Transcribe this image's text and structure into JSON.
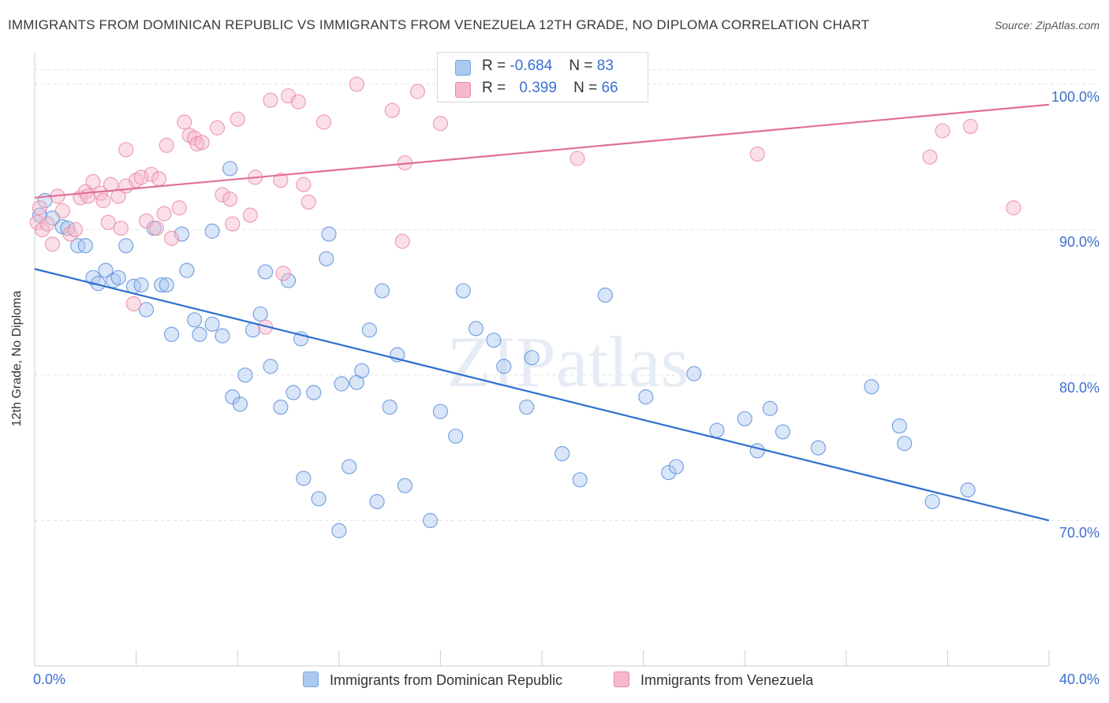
{
  "title": "IMMIGRANTS FROM DOMINICAN REPUBLIC VS IMMIGRANTS FROM VENEZUELA 12TH GRADE, NO DIPLOMA CORRELATION CHART",
  "source": "Source: ZipAtlas.com",
  "watermark": "ZIPatlas",
  "legend": {
    "rows": [
      {
        "r_label": "R =",
        "r_value": "-0.684",
        "n_label": "N =",
        "n_value": "83",
        "color": "#aac8f0"
      },
      {
        "r_label": "R =",
        "r_value": "0.399",
        "n_label": "N =",
        "n_value": "66",
        "color": "#f6b8cb"
      }
    ]
  },
  "chart_data": {
    "type": "scatter",
    "title": "IMMIGRANTS FROM DOMINICAN REPUBLIC VS IMMIGRANTS FROM VENEZUELA 12TH GRADE, NO DIPLOMA CORRELATION CHART",
    "xlabel": "",
    "ylabel": "12th Grade, No Diploma",
    "xlim": [
      0,
      40
    ],
    "ylim": [
      60,
      102
    ],
    "x_tick_labels": [
      "0.0%",
      "40.0%"
    ],
    "y_ticks": [
      70,
      80,
      90,
      100
    ],
    "y_tick_labels": [
      "70.0%",
      "80.0%",
      "90.0%",
      "100.0%"
    ],
    "grid": true,
    "legend_position": "bottom",
    "series": [
      {
        "name": "Immigrants from Dominican Republic",
        "color": "#5b8fd8",
        "fill": "#aac8f0",
        "trend": {
          "x": [
            0,
            40
          ],
          "y": [
            87.3,
            70.0
          ],
          "color": "#2e6fd0"
        },
        "points": [
          [
            0.2,
            91
          ],
          [
            0.4,
            92
          ],
          [
            0.7,
            90.8
          ],
          [
            1.1,
            90.2
          ],
          [
            1.3,
            90.1
          ],
          [
            1.7,
            88.9
          ],
          [
            2.0,
            88.9
          ],
          [
            2.3,
            86.7
          ],
          [
            2.5,
            86.3
          ],
          [
            2.8,
            87.2
          ],
          [
            3.1,
            86.5
          ],
          [
            3.3,
            86.7
          ],
          [
            3.6,
            88.9
          ],
          [
            3.9,
            86.1
          ],
          [
            4.2,
            86.2
          ],
          [
            4.4,
            84.5
          ],
          [
            4.7,
            90.1
          ],
          [
            5.0,
            86.2
          ],
          [
            5.2,
            86.2
          ],
          [
            5.4,
            82.8
          ],
          [
            5.8,
            89.7
          ],
          [
            6.0,
            87.2
          ],
          [
            6.3,
            83.8
          ],
          [
            6.5,
            82.8
          ],
          [
            7.0,
            89.9
          ],
          [
            7.0,
            83.5
          ],
          [
            7.4,
            82.7
          ],
          [
            7.7,
            94.2
          ],
          [
            7.8,
            78.5
          ],
          [
            8.1,
            78.0
          ],
          [
            8.3,
            80.0
          ],
          [
            8.6,
            83.1
          ],
          [
            8.9,
            84.2
          ],
          [
            9.1,
            87.1
          ],
          [
            9.3,
            80.6
          ],
          [
            9.7,
            77.8
          ],
          [
            10.0,
            86.5
          ],
          [
            10.2,
            78.8
          ],
          [
            10.5,
            82.5
          ],
          [
            10.6,
            72.9
          ],
          [
            11.0,
            78.8
          ],
          [
            11.2,
            71.5
          ],
          [
            11.5,
            88.0
          ],
          [
            11.6,
            89.7
          ],
          [
            12.0,
            69.3
          ],
          [
            12.1,
            79.4
          ],
          [
            12.4,
            73.7
          ],
          [
            12.7,
            79.5
          ],
          [
            12.9,
            80.3
          ],
          [
            13.2,
            83.1
          ],
          [
            13.5,
            71.3
          ],
          [
            13.7,
            85.8
          ],
          [
            14.0,
            77.8
          ],
          [
            14.3,
            81.4
          ],
          [
            14.6,
            72.4
          ],
          [
            15.6,
            70.0
          ],
          [
            16.0,
            77.5
          ],
          [
            16.6,
            75.8
          ],
          [
            16.9,
            85.8
          ],
          [
            17.4,
            83.2
          ],
          [
            18.1,
            82.4
          ],
          [
            18.5,
            80.6
          ],
          [
            19.4,
            77.8
          ],
          [
            19.6,
            81.2
          ],
          [
            20.8,
            74.6
          ],
          [
            21.5,
            72.8
          ],
          [
            22.5,
            85.5
          ],
          [
            24.1,
            78.5
          ],
          [
            25.0,
            73.3
          ],
          [
            25.3,
            73.7
          ],
          [
            26.0,
            80.1
          ],
          [
            26.9,
            76.2
          ],
          [
            28.0,
            77.0
          ],
          [
            28.5,
            74.8
          ],
          [
            29.0,
            77.7
          ],
          [
            29.5,
            76.1
          ],
          [
            30.9,
            75.0
          ],
          [
            33.0,
            79.2
          ],
          [
            34.1,
            76.5
          ],
          [
            34.3,
            75.3
          ],
          [
            35.4,
            71.3
          ],
          [
            36.8,
            72.1
          ],
          [
            18.0,
            101
          ]
        ]
      },
      {
        "name": "Immigrants from Venezuela",
        "color": "#e88aa8",
        "fill": "#f6b8cb",
        "trend": {
          "x": [
            0,
            40
          ],
          "y": [
            92.2,
            98.6
          ],
          "color": "#e07096"
        },
        "points": [
          [
            0.1,
            90.5
          ],
          [
            0.3,
            90.0
          ],
          [
            0.5,
            90.4
          ],
          [
            0.7,
            89.0
          ],
          [
            0.9,
            92.3
          ],
          [
            1.1,
            91.3
          ],
          [
            1.4,
            89.7
          ],
          [
            1.6,
            90.0
          ],
          [
            1.8,
            92.2
          ],
          [
            2.0,
            92.6
          ],
          [
            2.1,
            92.3
          ],
          [
            2.3,
            93.3
          ],
          [
            2.6,
            92.5
          ],
          [
            2.7,
            92.0
          ],
          [
            2.9,
            90.5
          ],
          [
            3.0,
            93.1
          ],
          [
            3.3,
            92.3
          ],
          [
            3.4,
            90.1
          ],
          [
            3.6,
            93.0
          ],
          [
            3.9,
            84.9
          ],
          [
            4.0,
            93.4
          ],
          [
            4.2,
            93.6
          ],
          [
            4.4,
            90.6
          ],
          [
            4.6,
            93.8
          ],
          [
            4.8,
            90.1
          ],
          [
            4.9,
            93.5
          ],
          [
            5.1,
            91.1
          ],
          [
            5.2,
            95.8
          ],
          [
            5.4,
            89.4
          ],
          [
            5.7,
            91.5
          ],
          [
            5.9,
            97.4
          ],
          [
            6.1,
            96.5
          ],
          [
            6.3,
            96.3
          ],
          [
            6.4,
            95.9
          ],
          [
            6.6,
            96.0
          ],
          [
            7.2,
            97.0
          ],
          [
            7.4,
            92.4
          ],
          [
            7.7,
            92.1
          ],
          [
            7.8,
            90.4
          ],
          [
            8.0,
            97.6
          ],
          [
            8.5,
            91.0
          ],
          [
            8.7,
            93.6
          ],
          [
            9.1,
            83.3
          ],
          [
            9.3,
            98.9
          ],
          [
            9.7,
            93.4
          ],
          [
            9.8,
            87.0
          ],
          [
            10.0,
            99.2
          ],
          [
            10.4,
            98.8
          ],
          [
            10.6,
            93.1
          ],
          [
            10.8,
            91.9
          ],
          [
            11.4,
            97.4
          ],
          [
            12.7,
            100
          ],
          [
            14.1,
            98.2
          ],
          [
            14.5,
            89.2
          ],
          [
            14.6,
            94.6
          ],
          [
            15.1,
            99.5
          ],
          [
            16.0,
            97.3
          ],
          [
            21.4,
            94.9
          ],
          [
            22.2,
            100
          ],
          [
            28.5,
            95.2
          ],
          [
            35.3,
            95.0
          ],
          [
            35.8,
            96.8
          ],
          [
            36.9,
            97.1
          ],
          [
            38.6,
            91.5
          ],
          [
            0.2,
            91.5
          ],
          [
            3.6,
            95.5
          ]
        ]
      }
    ]
  }
}
